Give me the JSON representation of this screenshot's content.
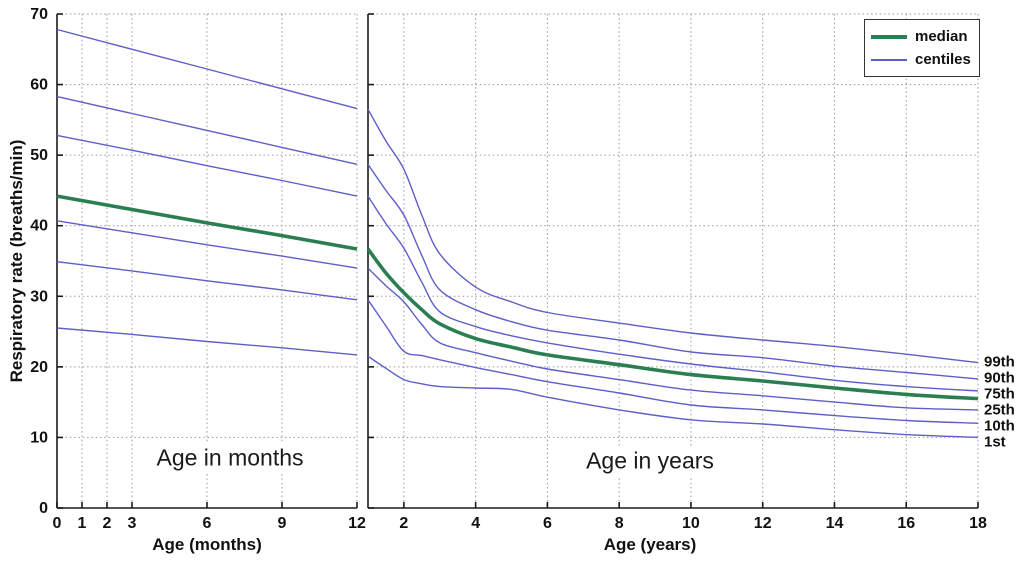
{
  "axes": {
    "y_label": "Respiratory rate (breaths/min)",
    "x_label_months": "Age (months)",
    "x_label_years": "Age (years)"
  },
  "panels": {
    "months": {
      "annotation": "Age in months"
    },
    "years": {
      "annotation": "Age in years"
    }
  },
  "legend": {
    "median_label": "median",
    "centiles_label": "centiles"
  },
  "right_labels": [
    "99th",
    "90th",
    "75th",
    "25th",
    "10th",
    "1st"
  ],
  "colors": {
    "median": "#2a7e52",
    "centiles": "#5c60c6",
    "grid": "#999999",
    "axis": "#1a1a1a"
  },
  "chart_data": [
    {
      "type": "line",
      "panel": "months",
      "xlabel": "Age (months)",
      "ylabel": "Respiratory rate (breaths/min)",
      "xlim": [
        0,
        12
      ],
      "ylim": [
        0,
        70
      ],
      "xticks": [
        0,
        1,
        2,
        3,
        6,
        9,
        12
      ],
      "yticks": [
        0,
        10,
        20,
        30,
        40,
        50,
        60,
        70
      ],
      "grid": true,
      "x": [
        0,
        3,
        6,
        9,
        12
      ],
      "series": [
        {
          "name": "99th",
          "role": "centile",
          "values": [
            67.8,
            65.0,
            62.2,
            59.4,
            56.6
          ]
        },
        {
          "name": "90th",
          "role": "centile",
          "values": [
            58.3,
            55.9,
            53.5,
            51.1,
            48.7
          ]
        },
        {
          "name": "75th",
          "role": "centile",
          "values": [
            52.8,
            50.7,
            48.5,
            46.4,
            44.2
          ]
        },
        {
          "name": "median",
          "role": "median",
          "values": [
            44.2,
            42.3,
            40.4,
            38.6,
            36.7
          ]
        },
        {
          "name": "25th",
          "role": "centile",
          "values": [
            40.7,
            39.0,
            37.3,
            35.7,
            34.0
          ]
        },
        {
          "name": "10th",
          "role": "centile",
          "values": [
            34.9,
            33.6,
            32.2,
            30.9,
            29.5
          ]
        },
        {
          "name": "1st",
          "role": "centile",
          "values": [
            25.5,
            24.6,
            23.6,
            22.7,
            21.7
          ]
        }
      ]
    },
    {
      "type": "line",
      "panel": "years",
      "xlabel": "Age (years)",
      "ylabel": "Respiratory rate (breaths/min)",
      "xlim": [
        1,
        18
      ],
      "ylim": [
        0,
        70
      ],
      "xticks": [
        2,
        4,
        6,
        8,
        10,
        12,
        14,
        16,
        18
      ],
      "yticks": [
        0,
        10,
        20,
        30,
        40,
        50,
        60,
        70
      ],
      "grid": true,
      "x": [
        1,
        1.5,
        2,
        2.5,
        3,
        4,
        5,
        6,
        8,
        10,
        12,
        14,
        16,
        18
      ],
      "series": [
        {
          "name": "99th",
          "role": "centile",
          "values": [
            56.5,
            52.0,
            48.0,
            41.5,
            36.0,
            31.3,
            29.2,
            27.7,
            26.2,
            24.8,
            23.8,
            22.9,
            21.8,
            20.6
          ]
        },
        {
          "name": "90th",
          "role": "centile",
          "values": [
            48.7,
            45.0,
            41.5,
            35.8,
            30.9,
            28.1,
            26.4,
            25.2,
            23.8,
            22.1,
            21.3,
            20.1,
            19.2,
            18.3
          ]
        },
        {
          "name": "75th",
          "role": "centile",
          "values": [
            44.2,
            40.3,
            36.8,
            32.0,
            27.8,
            25.7,
            24.4,
            23.4,
            21.8,
            20.4,
            19.3,
            18.1,
            17.2,
            16.6
          ]
        },
        {
          "name": "median",
          "role": "median",
          "values": [
            36.7,
            33.3,
            30.5,
            28.1,
            26.1,
            24.0,
            22.8,
            21.7,
            20.3,
            18.9,
            18.0,
            17.0,
            16.1,
            15.5
          ]
        },
        {
          "name": "25th",
          "role": "centile",
          "values": [
            34.0,
            31.5,
            29.2,
            26.0,
            23.4,
            22.0,
            20.8,
            19.7,
            18.2,
            16.7,
            15.9,
            15.0,
            14.2,
            13.9
          ]
        },
        {
          "name": "10th",
          "role": "centile",
          "values": [
            29.5,
            25.8,
            22.2,
            21.6,
            21.0,
            19.9,
            18.9,
            17.9,
            16.3,
            14.6,
            13.9,
            13.1,
            12.4,
            12.0
          ]
        },
        {
          "name": "1st",
          "role": "centile",
          "values": [
            21.5,
            19.8,
            18.2,
            17.6,
            17.2,
            17.0,
            16.8,
            15.7,
            13.9,
            12.5,
            11.9,
            11.1,
            10.4,
            10.0
          ]
        }
      ]
    }
  ]
}
